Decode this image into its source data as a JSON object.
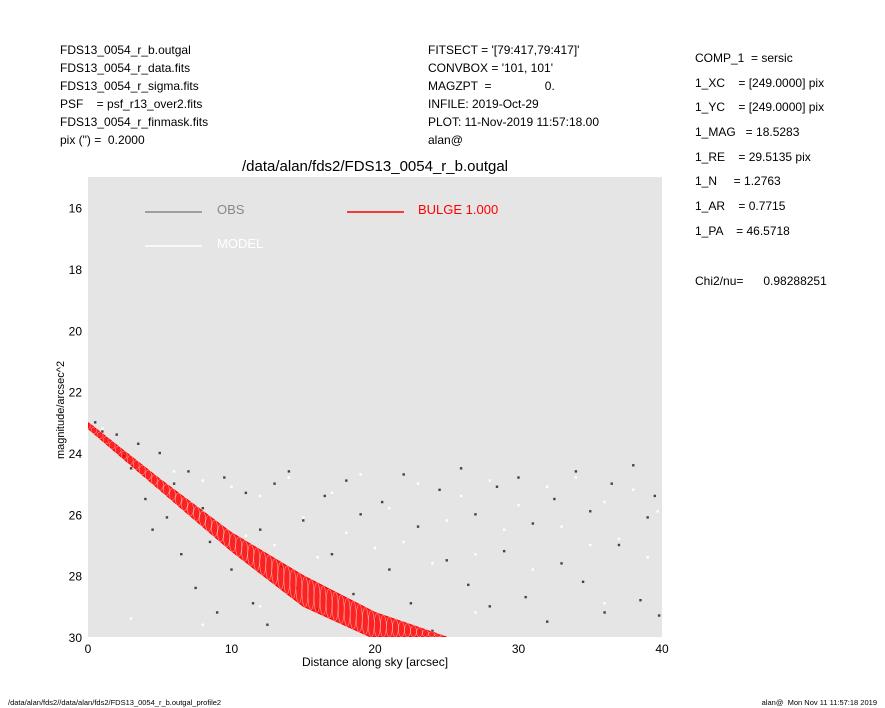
{
  "header_left": [
    "FDS13_0054_r_b.outgal",
    "FDS13_0054_r_data.fits",
    "FDS13_0054_r_sigma.fits",
    "PSF    = psf_r13_over2.fits",
    "FDS13_0054_r_finmask.fits",
    "pix (\") =  0.2000"
  ],
  "header_middle": [
    "FITSECT = '[79:417,79:417]'",
    "CONVBOX = '101, 101'",
    "MAGZPT  =                0.",
    "INFILE: 2019-Oct-29",
    "PLOT: 11-Nov-2019 11:57:18.00",
    "alan@"
  ],
  "params": [
    "COMP_1  = sersic",
    "1_XC    = [249.0000] pix",
    "1_YC    = [249.0000] pix",
    "1_MAG   = 18.5283",
    "1_RE    = 29.5135 pix",
    "1_N     = 1.2763",
    "1_AR    = 0.7715",
    "1_PA    = 46.5718"
  ],
  "chi2": "Chi2/nu=      0.98288251",
  "footer": {
    "left": "/data/alan/fds2//data/alan/fds2/FDS13_0054_r_b.outgal_profile2",
    "right": "alan@  Mon Nov 11 11:57:18 2019"
  },
  "chart_data": {
    "type": "scatter",
    "title": "/data/alan/fds2/FDS13_0054_r_b.outgal",
    "xlabel": "Distance along sky [arcsec]",
    "ylabel": "magnitude/arcsec^2",
    "xlim": [
      0,
      40
    ],
    "ylim": [
      30,
      15
    ],
    "y_reversed": true,
    "grid": false,
    "background": "#e5e5e5",
    "legend_placement": "top-left",
    "xticks": [
      "0",
      "10",
      "20",
      "30",
      "40"
    ],
    "xtick_values": [
      0,
      10,
      20,
      30,
      40
    ],
    "yticks": [
      "16",
      "18",
      "20",
      "22",
      "24",
      "26",
      "28",
      "30"
    ],
    "ytick_values": [
      16,
      18,
      20,
      22,
      24,
      26,
      28,
      30
    ],
    "series": [
      {
        "name": "OBS",
        "color": "#444444",
        "legend_color": "#888888",
        "points": [
          [
            0.5,
            23.0
          ],
          [
            1,
            23.3
          ],
          [
            1.5,
            23.6
          ],
          [
            2,
            23.4
          ],
          [
            2.5,
            24.1
          ],
          [
            3,
            24.5
          ],
          [
            3.5,
            23.7
          ],
          [
            4,
            25.5
          ],
          [
            4.5,
            26.5
          ],
          [
            5,
            24.0
          ],
          [
            5.5,
            26.1
          ],
          [
            6,
            25.0
          ],
          [
            6.5,
            27.3
          ],
          [
            7,
            24.6
          ],
          [
            7.5,
            28.4
          ],
          [
            8,
            25.8
          ],
          [
            8.5,
            26.9
          ],
          [
            9,
            29.2
          ],
          [
            9.5,
            24.8
          ],
          [
            10,
            27.8
          ],
          [
            11,
            25.3
          ],
          [
            11.5,
            28.9
          ],
          [
            12,
            26.5
          ],
          [
            12.5,
            29.6
          ],
          [
            13,
            25.0
          ],
          [
            13.5,
            27.7
          ],
          [
            14,
            24.6
          ],
          [
            14.5,
            28.4
          ],
          [
            15,
            26.2
          ],
          [
            16,
            29.1
          ],
          [
            16.5,
            25.4
          ],
          [
            17,
            27.3
          ],
          [
            18,
            24.9
          ],
          [
            18.5,
            28.6
          ],
          [
            19,
            26.0
          ],
          [
            20,
            29.4
          ],
          [
            20.5,
            25.6
          ],
          [
            21,
            27.8
          ],
          [
            22,
            24.7
          ],
          [
            22.5,
            28.9
          ],
          [
            23,
            26.4
          ],
          [
            24,
            29.8
          ],
          [
            24.5,
            25.2
          ],
          [
            25,
            27.5
          ],
          [
            26,
            24.5
          ],
          [
            26.5,
            28.3
          ],
          [
            27,
            26.0
          ],
          [
            28,
            29.0
          ],
          [
            28.5,
            25.1
          ],
          [
            29,
            27.2
          ],
          [
            30,
            24.8
          ],
          [
            30.5,
            28.7
          ],
          [
            31,
            26.3
          ],
          [
            32,
            29.5
          ],
          [
            32.5,
            25.5
          ],
          [
            33,
            27.6
          ],
          [
            34,
            24.6
          ],
          [
            34.5,
            28.2
          ],
          [
            35,
            25.9
          ],
          [
            36,
            29.2
          ],
          [
            36.5,
            25.0
          ],
          [
            37,
            27.0
          ],
          [
            38,
            24.4
          ],
          [
            38.5,
            28.8
          ],
          [
            39,
            26.1
          ],
          [
            39.5,
            25.4
          ],
          [
            39.8,
            29.3
          ]
        ]
      },
      {
        "name": "MODEL",
        "color": "#ffffff",
        "legend_color": "#ffffff",
        "points": [
          [
            1,
            23.2
          ],
          [
            2,
            23.8
          ],
          [
            3,
            24.4
          ],
          [
            4,
            24.8
          ],
          [
            5,
            25.2
          ],
          [
            6,
            24.6
          ],
          [
            7,
            25.9
          ],
          [
            8,
            24.9
          ],
          [
            9,
            26.3
          ],
          [
            10,
            25.1
          ],
          [
            11,
            26.7
          ],
          [
            12,
            25.4
          ],
          [
            13,
            27.0
          ],
          [
            14,
            24.8
          ],
          [
            15,
            26.1
          ],
          [
            16,
            27.4
          ],
          [
            17,
            25.3
          ],
          [
            18,
            26.6
          ],
          [
            19,
            24.7
          ],
          [
            20,
            27.1
          ],
          [
            21,
            25.8
          ],
          [
            22,
            26.9
          ],
          [
            23,
            25.0
          ],
          [
            24,
            27.6
          ],
          [
            25,
            26.2
          ],
          [
            26,
            25.4
          ],
          [
            27,
            27.3
          ],
          [
            28,
            24.9
          ],
          [
            29,
            26.5
          ],
          [
            30,
            25.7
          ],
          [
            31,
            27.8
          ],
          [
            32,
            25.1
          ],
          [
            33,
            26.4
          ],
          [
            34,
            24.8
          ],
          [
            35,
            27.0
          ],
          [
            36,
            25.6
          ],
          [
            37,
            26.8
          ],
          [
            38,
            25.2
          ],
          [
            39,
            27.4
          ],
          [
            39.7,
            25.9
          ],
          [
            3,
            29.4
          ],
          [
            8,
            29.6
          ],
          [
            12,
            29.0
          ],
          [
            27,
            29.2
          ],
          [
            36,
            28.9
          ]
        ]
      },
      {
        "name": "BULGE  1.000",
        "color": "#ff0000",
        "legend_color": "#ff0000",
        "band_upper": [
          [
            0,
            23.0
          ],
          [
            5,
            24.85
          ],
          [
            10,
            26.6
          ],
          [
            15,
            28.0
          ],
          [
            20,
            29.2
          ],
          [
            25,
            30
          ]
        ],
        "band_lower": [
          [
            0,
            23.2
          ],
          [
            5,
            25.2
          ],
          [
            10,
            27.2
          ],
          [
            15,
            29.0
          ],
          [
            19.7,
            30
          ]
        ]
      }
    ]
  }
}
